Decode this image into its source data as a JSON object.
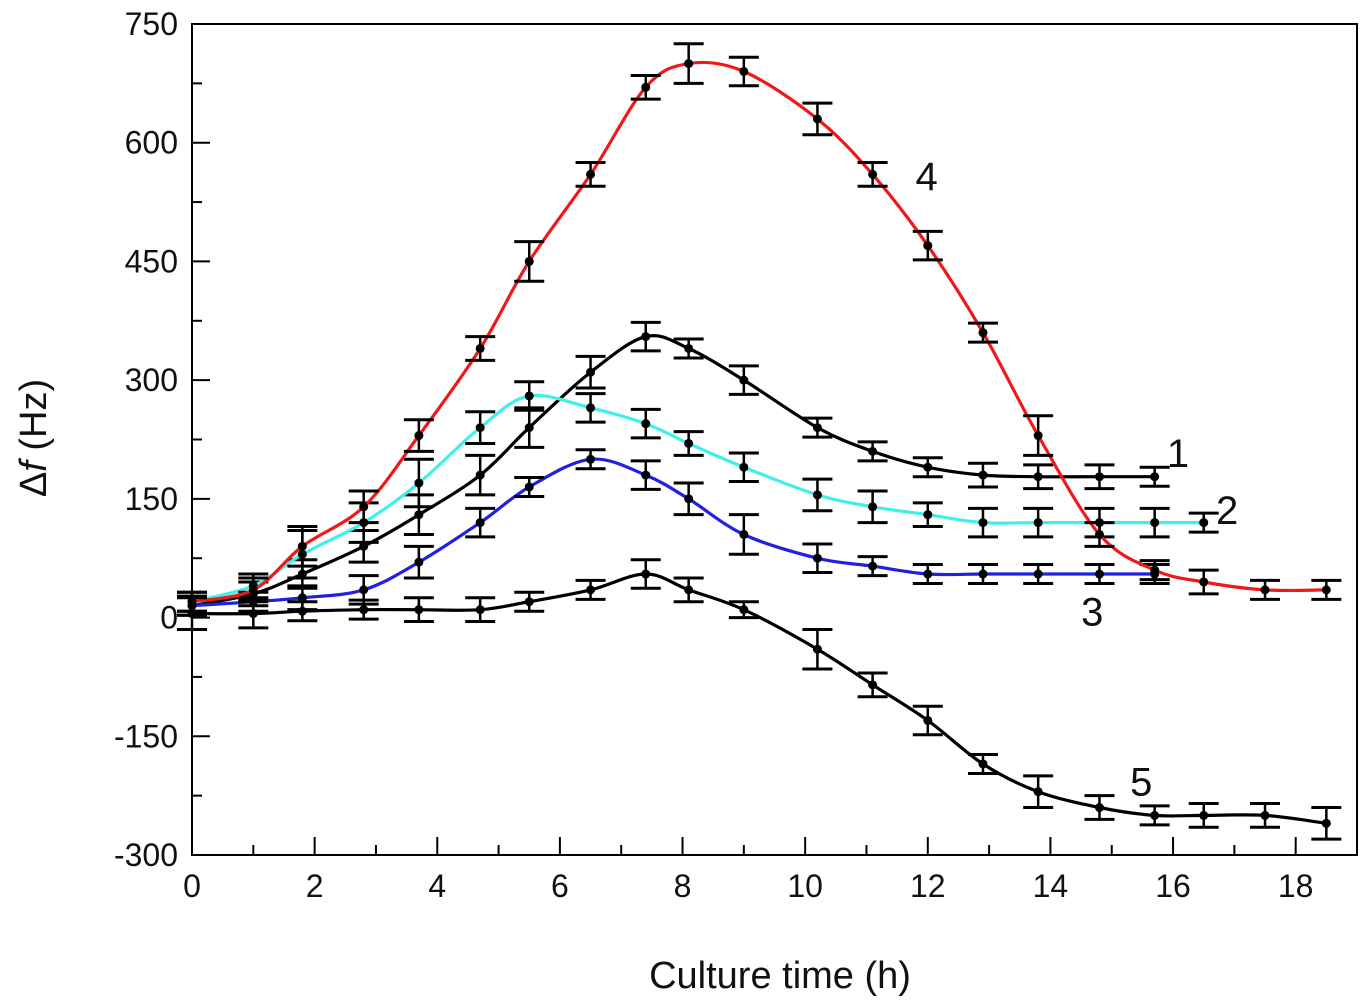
{
  "chart_data": {
    "type": "line",
    "title": "",
    "xlabel": "Culture time (h)",
    "ylabel_prefix": "Δ",
    "ylabel_italic": "f",
    "ylabel_suffix": " (Hz)",
    "xlim": [
      0,
      19
    ],
    "ylim": [
      -300,
      750
    ],
    "xticks": [
      0,
      2,
      4,
      6,
      8,
      10,
      12,
      14,
      16,
      18
    ],
    "xtick_labels": [
      "0",
      "2",
      "4",
      "6",
      "8",
      "10",
      "12",
      "14",
      "16",
      "18"
    ],
    "yticks": [
      750,
      600,
      450,
      300,
      150,
      0,
      -150,
      -300
    ],
    "ytick_labels": [
      "750",
      "600",
      "450",
      "300",
      "150",
      "0",
      "-150",
      "-300"
    ],
    "grid": false,
    "legend": "none",
    "series": [
      {
        "name": "1",
        "color": "#000000",
        "label_at": [
          15.9,
          190
        ],
        "x": [
          0,
          1,
          1.8,
          2.8,
          3.7,
          4.7,
          5.5,
          6.5,
          7.4,
          8.1,
          9,
          10.2,
          11.1,
          12,
          12.9,
          13.8,
          14.8,
          15.7
        ],
        "y": [
          15,
          30,
          55,
          90,
          130,
          180,
          240,
          310,
          355,
          340,
          300,
          240,
          210,
          190,
          180,
          178,
          178,
          178
        ],
        "err": [
          12,
          15,
          18,
          20,
          25,
          25,
          25,
          20,
          18,
          12,
          18,
          12,
          12,
          12,
          15,
          15,
          15,
          12
        ]
      },
      {
        "name": "2",
        "color": "#3ff0ea",
        "label_at": [
          16.7,
          118
        ],
        "x": [
          0,
          1,
          1.8,
          2.8,
          3.7,
          4.7,
          5.5,
          6.5,
          7.4,
          8.1,
          9,
          10.2,
          11.1,
          12,
          12.9,
          13.8,
          14.8,
          15.7,
          16.5
        ],
        "y": [
          20,
          40,
          80,
          120,
          170,
          240,
          280,
          265,
          245,
          220,
          190,
          155,
          140,
          130,
          120,
          120,
          120,
          120,
          120
        ],
        "err": [
          12,
          15,
          30,
          25,
          30,
          20,
          18,
          18,
          18,
          15,
          18,
          20,
          20,
          15,
          18,
          18,
          18,
          18,
          12
        ]
      },
      {
        "name": "3",
        "color": "#1f20e0",
        "label_at": [
          14.5,
          -10
        ],
        "x": [
          0,
          1,
          1.8,
          2.8,
          3.7,
          4.7,
          5.5,
          6.5,
          7.4,
          8.1,
          9,
          10.2,
          11.1,
          12,
          12.9,
          13.8,
          14.8,
          15.7
        ],
        "y": [
          15,
          20,
          25,
          35,
          70,
          120,
          165,
          200,
          180,
          150,
          105,
          75,
          65,
          55,
          55,
          55,
          55,
          55
        ],
        "err": [
          12,
          12,
          15,
          18,
          20,
          18,
          12,
          12,
          18,
          20,
          25,
          18,
          12,
          12,
          12,
          12,
          12,
          12
        ]
      },
      {
        "name": "4",
        "color": "#f01818",
        "label_at": [
          11.8,
          540
        ],
        "x": [
          0,
          1,
          1.8,
          2.8,
          3.7,
          4.7,
          5.5,
          6.5,
          7.4,
          8.1,
          9,
          10.2,
          11.1,
          12,
          12.9,
          13.8,
          14.8,
          15.7,
          16.5,
          17.5,
          18.5
        ],
        "y": [
          20,
          35,
          90,
          140,
          230,
          340,
          450,
          560,
          670,
          700,
          690,
          630,
          560,
          470,
          360,
          230,
          105,
          60,
          45,
          35,
          35
        ],
        "err": [
          12,
          15,
          25,
          20,
          20,
          15,
          25,
          15,
          15,
          25,
          18,
          20,
          15,
          18,
          12,
          25,
          15,
          12,
          15,
          12,
          12
        ]
      },
      {
        "name": "5",
        "color": "#000000",
        "label_at": [
          15.3,
          -225
        ],
        "x": [
          0,
          1,
          1.8,
          2.8,
          3.7,
          4.7,
          5.5,
          6.5,
          7.4,
          8.1,
          9,
          10.2,
          11.1,
          12,
          12.9,
          13.8,
          14.8,
          15.7,
          16.5,
          17.5,
          18.5
        ],
        "y": [
          5,
          5,
          8,
          10,
          10,
          10,
          20,
          35,
          55,
          35,
          10,
          -40,
          -85,
          -130,
          -185,
          -220,
          -240,
          -250,
          -250,
          -250,
          -260
        ],
        "err": [
          20,
          18,
          12,
          12,
          15,
          15,
          12,
          12,
          18,
          15,
          10,
          25,
          15,
          18,
          12,
          20,
          15,
          12,
          15,
          15,
          20
        ]
      }
    ]
  }
}
